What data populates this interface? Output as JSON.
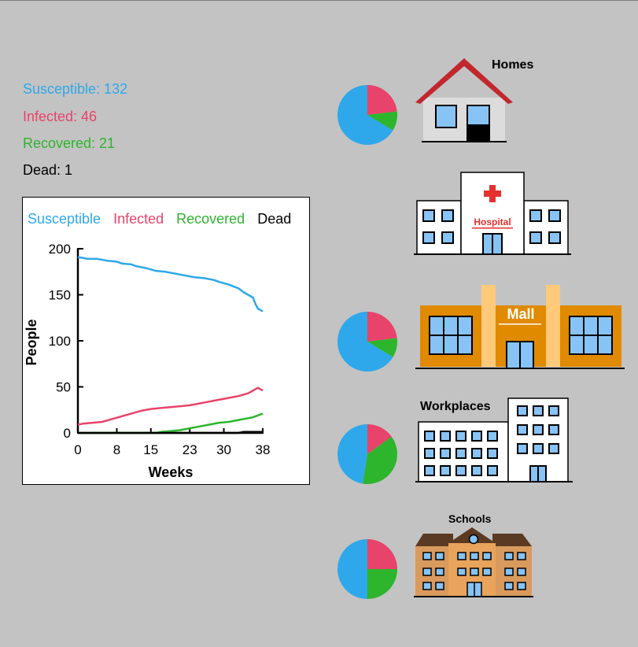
{
  "stats": {
    "susceptible": "Susceptible: 132",
    "infected": "Infected: 46",
    "recovered": "Recovered: 21",
    "dead": "Dead: 1"
  },
  "colors": {
    "susceptible": "#2ea8ea",
    "infected": "#e8436a",
    "recovered": "#2db52d",
    "dead": "#000000"
  },
  "chart_data": {
    "type": "line",
    "title": "",
    "xlabel": "Weeks",
    "ylabel": "People",
    "xlim": [
      0,
      38
    ],
    "ylim": [
      0,
      200
    ],
    "xticks": [
      0,
      8,
      15,
      23,
      30,
      38
    ],
    "yticks": [
      0,
      50,
      100,
      150,
      200
    ],
    "legend": [
      "Susceptible",
      "Infected",
      "Recovered",
      "Dead"
    ],
    "legend_position": "top",
    "grid": false,
    "series": [
      {
        "name": "Susceptible",
        "color": "#2ea8ea",
        "points": [
          [
            0,
            191
          ],
          [
            2,
            189
          ],
          [
            4,
            189
          ],
          [
            6,
            187
          ],
          [
            8,
            186
          ],
          [
            9,
            184
          ],
          [
            11,
            183
          ],
          [
            12,
            181
          ],
          [
            14,
            179
          ],
          [
            16,
            176
          ],
          [
            18,
            175
          ],
          [
            20,
            173
          ],
          [
            21,
            172
          ],
          [
            23,
            170
          ],
          [
            24,
            169
          ],
          [
            26,
            168
          ],
          [
            28,
            166
          ],
          [
            29,
            164
          ],
          [
            31,
            161
          ],
          [
            33,
            157
          ],
          [
            34,
            153
          ],
          [
            35,
            150
          ],
          [
            36,
            147
          ],
          [
            36.5,
            140
          ],
          [
            37,
            135
          ],
          [
            38,
            132
          ]
        ]
      },
      {
        "name": "Infected",
        "color": "#e8436a",
        "points": [
          [
            0,
            9
          ],
          [
            1,
            10
          ],
          [
            3,
            11
          ],
          [
            5,
            12
          ],
          [
            7,
            15
          ],
          [
            9,
            18
          ],
          [
            11,
            21
          ],
          [
            13,
            24
          ],
          [
            15,
            26
          ],
          [
            17,
            27
          ],
          [
            19,
            28
          ],
          [
            21,
            29
          ],
          [
            23,
            30
          ],
          [
            25,
            32
          ],
          [
            27,
            34
          ],
          [
            29,
            36
          ],
          [
            31,
            38
          ],
          [
            33,
            40
          ],
          [
            35,
            43
          ],
          [
            36,
            46
          ],
          [
            37,
            49
          ],
          [
            38,
            46
          ]
        ]
      },
      {
        "name": "Recovered",
        "color": "#2db52d",
        "points": [
          [
            0,
            0
          ],
          [
            16,
            0
          ],
          [
            17,
            1
          ],
          [
            19,
            2
          ],
          [
            21,
            3
          ],
          [
            23,
            5
          ],
          [
            25,
            7
          ],
          [
            27,
            9
          ],
          [
            29,
            11
          ],
          [
            31,
            12
          ],
          [
            33,
            14
          ],
          [
            35,
            16
          ],
          [
            36,
            17
          ],
          [
            37,
            19
          ],
          [
            38,
            21
          ]
        ]
      },
      {
        "name": "Dead",
        "color": "#000000",
        "points": [
          [
            0,
            0
          ],
          [
            33,
            0
          ],
          [
            34,
            1
          ],
          [
            38,
            1
          ]
        ]
      }
    ]
  },
  "locations": [
    {
      "name": "Homes",
      "pie": {
        "susceptible": 132,
        "infected": 46,
        "recovered": 21
      }
    },
    {
      "name": "Hospital",
      "pie": null
    },
    {
      "name": "Mall",
      "pie": {
        "susceptible": 132,
        "infected": 46,
        "recovered": 21
      }
    },
    {
      "name": "Workplaces",
      "pie": {
        "susceptible": 95,
        "infected": 30,
        "recovered": 75
      }
    },
    {
      "name": "Schools",
      "pie": {
        "susceptible": 100,
        "infected": 50,
        "recovered": 50
      }
    }
  ]
}
